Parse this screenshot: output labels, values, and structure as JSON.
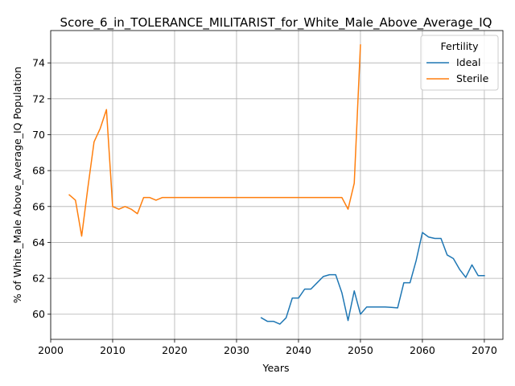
{
  "chart_data": {
    "type": "line",
    "title": "Score_6_in_TOLERANCE_MILITARIST_for_White_Male_Above_Average_IQ",
    "xlabel": "Years",
    "ylabel": "% of White_Male Above_Average_IQ Population",
    "xlim": [
      2000,
      2073
    ],
    "ylim": [
      58.6,
      75.8
    ],
    "xticks": [
      2000,
      2010,
      2020,
      2030,
      2040,
      2050,
      2060,
      2070
    ],
    "yticks": [
      60,
      62,
      64,
      66,
      68,
      70,
      72,
      74
    ],
    "grid": true,
    "legend": {
      "title": "Fertility",
      "placement": "top-right"
    },
    "series": [
      {
        "name": "Ideal",
        "color": "#1f77b4",
        "x": [
          2034,
          2035,
          2036,
          2037,
          2038,
          2039,
          2040,
          2041,
          2042,
          2043,
          2044,
          2045,
          2046,
          2047,
          2048,
          2049,
          2050,
          2051,
          2052,
          2053,
          2054,
          2055,
          2056,
          2057,
          2058,
          2059,
          2060,
          2061,
          2062,
          2063,
          2064,
          2065,
          2066,
          2067,
          2068,
          2069,
          2070
        ],
        "y": [
          59.8,
          59.6,
          59.6,
          59.45,
          59.8,
          60.9,
          60.9,
          61.4,
          61.4,
          61.75,
          62.1,
          62.2,
          62.2,
          61.2,
          59.65,
          61.3,
          60.0,
          60.4,
          60.4,
          60.4,
          60.4,
          60.38,
          60.35,
          61.75,
          61.75,
          63.0,
          64.55,
          64.3,
          64.22,
          64.22,
          63.3,
          63.1,
          62.5,
          62.05,
          62.75,
          62.15,
          62.15
        ]
      },
      {
        "name": "Sterile",
        "color": "#ff7f0e",
        "x": [
          2003,
          2004,
          2005,
          2006,
          2007,
          2008,
          2009,
          2010,
          2011,
          2012,
          2013,
          2014,
          2015,
          2016,
          2017,
          2018,
          2019,
          2020,
          2021,
          2022,
          2023,
          2024,
          2025,
          2026,
          2027,
          2028,
          2029,
          2030,
          2031,
          2032,
          2033,
          2034,
          2035,
          2036,
          2037,
          2038,
          2039,
          2040,
          2041,
          2042,
          2043,
          2044,
          2045,
          2046,
          2047,
          2048,
          2049,
          2050
        ],
        "y": [
          66.65,
          66.35,
          64.35,
          67.05,
          69.6,
          70.35,
          71.4,
          66.0,
          65.85,
          66.0,
          65.85,
          65.6,
          66.5,
          66.5,
          66.35,
          66.5,
          66.5,
          66.5,
          66.5,
          66.5,
          66.5,
          66.5,
          66.5,
          66.5,
          66.5,
          66.5,
          66.5,
          66.5,
          66.5,
          66.5,
          66.5,
          66.5,
          66.5,
          66.5,
          66.5,
          66.5,
          66.5,
          66.5,
          66.5,
          66.5,
          66.5,
          66.5,
          66.5,
          66.5,
          66.5,
          65.85,
          67.3,
          75.0
        ]
      }
    ]
  }
}
